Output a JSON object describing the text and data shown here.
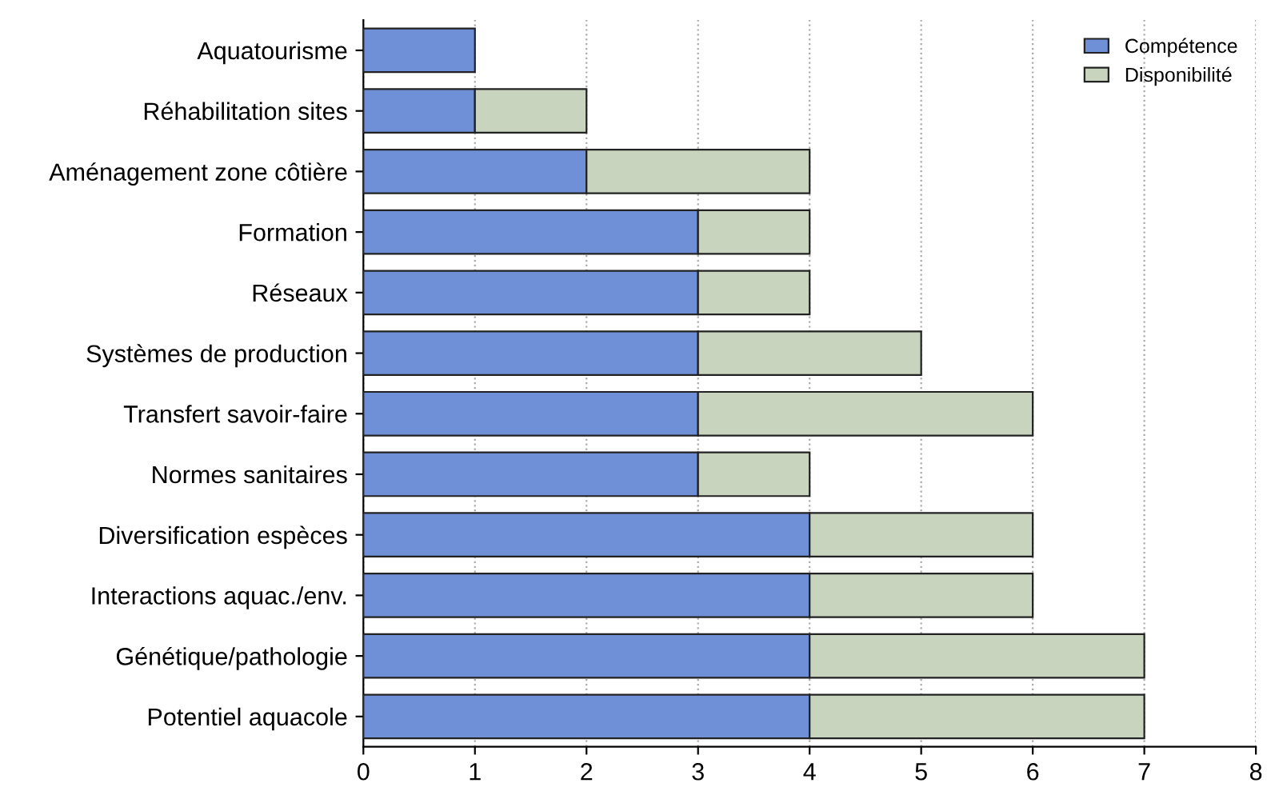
{
  "chart_data": {
    "type": "bar",
    "orientation": "horizontal",
    "stacked": true,
    "categories": [
      "Aquatourisme",
      "Réhabilitation sites",
      "Aménagement zone côtière",
      "Formation",
      "Réseaux",
      "Systèmes de production",
      "Transfert savoir-faire",
      "Normes sanitaires",
      "Diversification espèces",
      "Interactions aquac./env.",
      "Génétique/pathologie",
      "Potentiel aquacole"
    ],
    "series": [
      {
        "name": "Compétence",
        "color": "#6f8fd6",
        "values": [
          1,
          1,
          2,
          3,
          3,
          3,
          3,
          3,
          4,
          4,
          4,
          4
        ]
      },
      {
        "name": "Disponibilité",
        "color": "#c9d4bf",
        "values": [
          null,
          1,
          2,
          1,
          1,
          2,
          3,
          1,
          2,
          2,
          3,
          3
        ]
      }
    ],
    "xlim": [
      0,
      8
    ],
    "xticks": [
      0,
      1,
      2,
      3,
      4,
      5,
      6,
      7,
      8
    ],
    "grid": "x",
    "legend": "top right"
  }
}
